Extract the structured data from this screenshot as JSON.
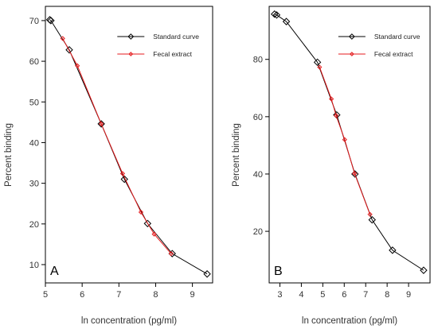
{
  "chart_data": [
    {
      "type": "line",
      "panel_label": "A",
      "xlabel": "ln concentration (pg/ml)",
      "ylabel": "Percent binding",
      "xlim": [
        5.0,
        9.55
      ],
      "ylim": [
        5.5,
        73.5
      ],
      "x_ticks": [
        5,
        6,
        7,
        8,
        9
      ],
      "y_ticks": [
        10,
        20,
        30,
        40,
        50,
        60,
        70
      ],
      "grid": false,
      "legend_position": "top-right",
      "series": [
        {
          "name": "Standard curve",
          "color": "#000000",
          "marker": "diamond-open",
          "x": [
            5.12,
            5.15,
            5.65,
            6.52,
            7.15,
            7.78,
            8.45,
            9.4
          ],
          "y": [
            70.2,
            70.0,
            62.8,
            44.6,
            31.0,
            20.1,
            12.7,
            7.7
          ]
        },
        {
          "name": "Fecal extract",
          "color": "#e41a1c",
          "marker": "diamond-small",
          "x": [
            5.47,
            5.87,
            6.52,
            7.1,
            7.6,
            7.96,
            8.42
          ],
          "y": [
            65.6,
            58.9,
            44.6,
            32.4,
            22.9,
            17.5,
            12.7
          ]
        }
      ]
    },
    {
      "type": "line",
      "panel_label": "B",
      "xlabel": "ln concentration (pg/ml)",
      "ylabel": "Percent binding",
      "xlim": [
        2.5,
        10.0
      ],
      "ylim": [
        2.0,
        98.5
      ],
      "x_ticks": [
        3,
        4,
        5,
        6,
        7,
        8,
        9
      ],
      "y_ticks": [
        20,
        40,
        60,
        80
      ],
      "grid": false,
      "legend_position": "top-right",
      "series": [
        {
          "name": "Standard curve",
          "color": "#000000",
          "marker": "diamond-open",
          "x": [
            2.75,
            2.85,
            3.3,
            4.75,
            5.65,
            6.5,
            7.3,
            8.25,
            9.7
          ],
          "y": [
            95.8,
            95.5,
            93.2,
            79.0,
            60.6,
            40.0,
            24.0,
            13.4,
            6.4
          ]
        },
        {
          "name": "Fecal extract",
          "color": "#e41a1c",
          "marker": "diamond-small",
          "x": [
            4.85,
            5.4,
            5.62,
            6.02,
            6.48,
            7.2
          ],
          "y": [
            77.3,
            66.2,
            60.4,
            52.0,
            40.2,
            25.9
          ]
        }
      ]
    }
  ]
}
